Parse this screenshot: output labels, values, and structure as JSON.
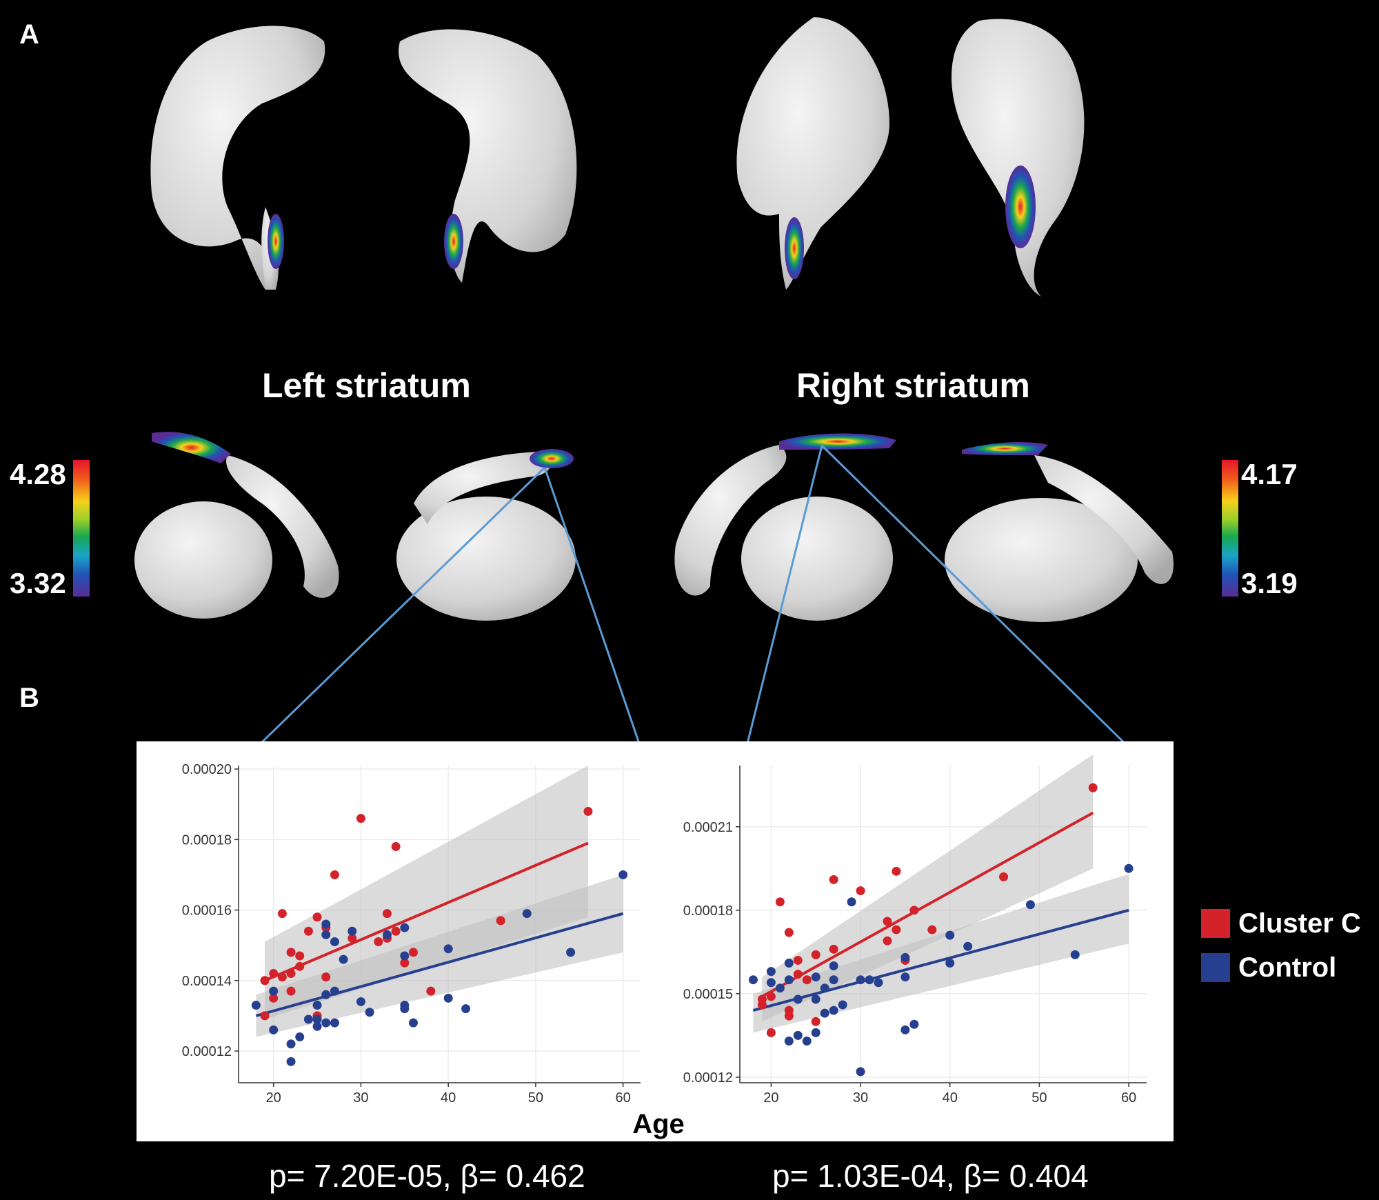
{
  "panels": {
    "a_label": "A",
    "b_label": "B"
  },
  "regions": {
    "left_title": "Left striatum",
    "right_title": "Right striatum"
  },
  "colorbars": {
    "left": {
      "max_label": "4.28",
      "min_label": "3.32"
    },
    "right": {
      "max_label": "4.17",
      "min_label": "3.19"
    }
  },
  "stats": {
    "left": "p= 7.20E-05, β= 0.462",
    "right": "p= 1.03E-04, β= 0.404"
  },
  "colors": {
    "cluster_c": "#d3222a",
    "control": "#26408f",
    "band": "#bdbdbd",
    "connector": "#5b9bd5"
  },
  "chart_data": [
    {
      "type": "scatter",
      "panel": "left",
      "xlabel": "Age",
      "ylabel": "",
      "xlim": [
        16,
        62
      ],
      "ylim": [
        0.000111,
        0.000201
      ],
      "x_ticks": [
        20,
        30,
        40,
        50,
        60
      ],
      "y_ticks": [
        0.00012,
        0.00014,
        0.00016,
        0.00018,
        0.0002
      ],
      "y_tick_labels": [
        "0.00012",
        "0.00014",
        "0.00016",
        "0.00018",
        "0.00020"
      ],
      "grid": true,
      "legend": "right",
      "series": [
        {
          "name": "Cluster C",
          "color": "#d3222a",
          "points": [
            [
              19,
              0.00014
            ],
            [
              19,
              0.00013
            ],
            [
              20,
              0.000142
            ],
            [
              20,
              0.000135
            ],
            [
              21,
              0.000159
            ],
            [
              21,
              0.000141
            ],
            [
              22,
              0.000148
            ],
            [
              22,
              0.000137
            ],
            [
              22,
              0.000142
            ],
            [
              23,
              0.000147
            ],
            [
              23,
              0.000144
            ],
            [
              24,
              0.000154
            ],
            [
              25,
              0.000158
            ],
            [
              25,
              0.00013
            ],
            [
              26,
              0.000155
            ],
            [
              26,
              0.000141
            ],
            [
              27,
              0.00017
            ],
            [
              29,
              0.000152
            ],
            [
              30,
              0.000186
            ],
            [
              32,
              0.000151
            ],
            [
              33,
              0.000159
            ],
            [
              33,
              0.000152
            ],
            [
              34,
              0.000178
            ],
            [
              34,
              0.000154
            ],
            [
              35,
              0.000145
            ],
            [
              36,
              0.000148
            ],
            [
              38,
              0.000137
            ],
            [
              46,
              0.000157
            ],
            [
              56,
              0.000188
            ]
          ],
          "trend": [
            [
              19,
              0.00014
            ],
            [
              56,
              0.000179
            ]
          ],
          "band": {
            "x": [
              19,
              56
            ],
            "lower": [
              0.000129,
              0.000158
            ],
            "upper": [
              0.000151,
              0.000201
            ]
          }
        },
        {
          "name": "Control",
          "color": "#26408f",
          "points": [
            [
              18,
              0.000133
            ],
            [
              20,
              0.000137
            ],
            [
              20,
              0.000126
            ],
            [
              22,
              0.000122
            ],
            [
              22,
              0.000117
            ],
            [
              23,
              0.000124
            ],
            [
              24,
              0.000129
            ],
            [
              25,
              0.000129
            ],
            [
              25,
              0.000127
            ],
            [
              25,
              0.000133
            ],
            [
              26,
              0.000156
            ],
            [
              26,
              0.000153
            ],
            [
              26,
              0.000136
            ],
            [
              26,
              0.000128
            ],
            [
              27,
              0.000151
            ],
            [
              27,
              0.000137
            ],
            [
              27,
              0.000128
            ],
            [
              28,
              0.000146
            ],
            [
              29,
              0.000154
            ],
            [
              30,
              0.000134
            ],
            [
              31,
              0.000131
            ],
            [
              33,
              0.000153
            ],
            [
              35,
              0.000155
            ],
            [
              35,
              0.000147
            ],
            [
              35,
              0.000133
            ],
            [
              35,
              0.000132
            ],
            [
              36,
              0.000128
            ],
            [
              40,
              0.000149
            ],
            [
              40,
              0.000135
            ],
            [
              42,
              0.000132
            ],
            [
              49,
              0.000159
            ],
            [
              54,
              0.000148
            ],
            [
              60,
              0.00017
            ]
          ],
          "trend": [
            [
              18,
              0.00013
            ],
            [
              60,
              0.000159
            ]
          ],
          "band": {
            "x": [
              18,
              60
            ],
            "lower": [
              0.000124,
              0.000148
            ],
            "upper": [
              0.000136,
              0.00017
            ]
          }
        }
      ]
    },
    {
      "type": "scatter",
      "panel": "right",
      "xlabel": "Age",
      "ylabel": "",
      "xlim": [
        16.5,
        62
      ],
      "ylim": [
        0.000118,
        0.000232
      ],
      "x_ticks": [
        20,
        30,
        40,
        50,
        60
      ],
      "y_ticks": [
        0.00012,
        0.00015,
        0.00018,
        0.00021
      ],
      "y_tick_labels": [
        "0.00012",
        "0.00015",
        "0.00018",
        "0.00021"
      ],
      "grid": true,
      "legend": "right",
      "series": [
        {
          "name": "Cluster C",
          "color": "#d3222a",
          "points": [
            [
              19,
              0.000148
            ],
            [
              19,
              0.000146
            ],
            [
              20,
              0.000149
            ],
            [
              20,
              0.000136
            ],
            [
              21,
              0.000183
            ],
            [
              22,
              0.000172
            ],
            [
              22,
              0.000144
            ],
            [
              22,
              0.000142
            ],
            [
              23,
              0.000162
            ],
            [
              23,
              0.000157
            ],
            [
              24,
              0.000155
            ],
            [
              25,
              0.00014
            ],
            [
              25,
              0.000164
            ],
            [
              27,
              0.000191
            ],
            [
              27,
              0.000166
            ],
            [
              30,
              0.000187
            ],
            [
              33,
              0.000176
            ],
            [
              33,
              0.000169
            ],
            [
              34,
              0.000194
            ],
            [
              34,
              0.000173
            ],
            [
              35,
              0.000162
            ],
            [
              36,
              0.00018
            ],
            [
              38,
              0.000173
            ],
            [
              46,
              0.000192
            ],
            [
              56,
              0.000224
            ]
          ],
          "trend": [
            [
              19,
              0.000149
            ],
            [
              56,
              0.000215
            ]
          ],
          "band": {
            "x": [
              19,
              56
            ],
            "lower": [
              0.00014,
              0.000195
            ],
            "upper": [
              0.000156,
              0.000236
            ]
          }
        },
        {
          "name": "Control",
          "color": "#26408f",
          "points": [
            [
              18,
              0.000155
            ],
            [
              20,
              0.000158
            ],
            [
              20,
              0.000154
            ],
            [
              21,
              0.000152
            ],
            [
              22,
              0.000161
            ],
            [
              22,
              0.000133
            ],
            [
              22,
              0.000155
            ],
            [
              23,
              0.000148
            ],
            [
              23,
              0.000135
            ],
            [
              24,
              0.000133
            ],
            [
              25,
              0.000156
            ],
            [
              25,
              0.000148
            ],
            [
              25,
              0.000136
            ],
            [
              26,
              0.000143
            ],
            [
              26,
              0.000152
            ],
            [
              27,
              0.00016
            ],
            [
              27,
              0.000155
            ],
            [
              27,
              0.000144
            ],
            [
              28,
              0.000146
            ],
            [
              29,
              0.000183
            ],
            [
              30,
              0.000155
            ],
            [
              30,
              0.000122
            ],
            [
              31,
              0.000155
            ],
            [
              32,
              0.000154
            ],
            [
              35,
              0.000163
            ],
            [
              35,
              0.000156
            ],
            [
              35,
              0.000137
            ],
            [
              36,
              0.000139
            ],
            [
              40,
              0.000171
            ],
            [
              40,
              0.000161
            ],
            [
              42,
              0.000167
            ],
            [
              49,
              0.000182
            ],
            [
              54,
              0.000164
            ],
            [
              60,
              0.000195
            ]
          ],
          "trend": [
            [
              18,
              0.000144
            ],
            [
              60,
              0.00018
            ]
          ],
          "band": {
            "x": [
              18,
              60
            ],
            "lower": [
              0.000136,
              0.000168
            ],
            "upper": [
              0.00015,
              0.000193
            ]
          }
        }
      ]
    }
  ]
}
